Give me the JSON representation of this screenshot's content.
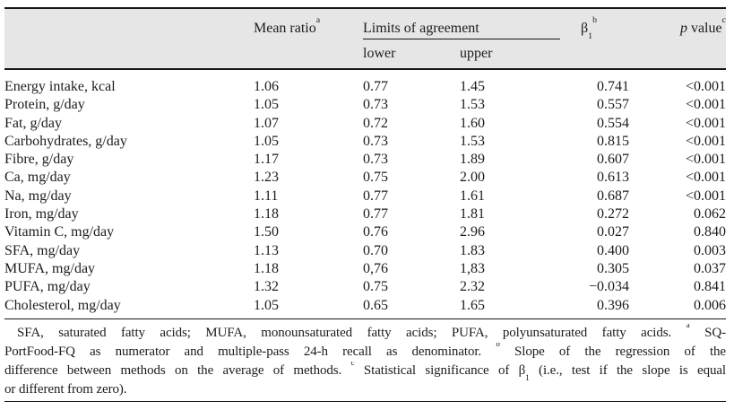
{
  "colors": {
    "header_background": "#e6e6e6",
    "text": "#1c1c1c",
    "rule": "#161616"
  },
  "table": {
    "header": {
      "mean_ratio": {
        "parts": [
          {
            "t": "Mean ratio"
          },
          {
            "sup": "a"
          }
        ]
      },
      "limits": {
        "label": "Limits of agreement",
        "sub_columns": [
          "lower",
          "upper"
        ]
      },
      "beta1": {
        "parts": [
          {
            "t": "β"
          },
          {
            "sub": "1"
          },
          {
            "sup": "b"
          }
        ]
      },
      "p_value": {
        "parts": [
          {
            "i": "p"
          },
          {
            "t": " value"
          },
          {
            "sup": "c"
          }
        ]
      }
    },
    "rows": [
      {
        "label": "Energy intake, kcal",
        "mean_ratio": "1.06",
        "lower": "0.77",
        "upper": "1.45",
        "beta": "0.741",
        "p_value": "<0.001"
      },
      {
        "label": "Protein, g/day",
        "mean_ratio": "1.05",
        "lower": "0.73",
        "upper": "1.53",
        "beta": "0.557",
        "p_value": "<0.001"
      },
      {
        "label": "Fat, g/day",
        "mean_ratio": "1.07",
        "lower": "0.72",
        "upper": "1.60",
        "beta": "0.554",
        "p_value": "<0.001"
      },
      {
        "label": "Carbohydrates, g/day",
        "mean_ratio": "1.05",
        "lower": "0.73",
        "upper": "1.53",
        "beta": "0.815",
        "p_value": "<0.001"
      },
      {
        "label": "Fibre, g/day",
        "mean_ratio": "1.17",
        "lower": "0.73",
        "upper": "1.89",
        "beta": "0.607",
        "p_value": "<0.001"
      },
      {
        "label": "Ca, mg/day",
        "mean_ratio": "1.23",
        "lower": "0.75",
        "upper": "2.00",
        "beta": "0.613",
        "p_value": "<0.001"
      },
      {
        "label": "Na, mg/day",
        "mean_ratio": "1.11",
        "lower": "0.77",
        "upper": "1.61",
        "beta": "0.687",
        "p_value": "<0.001"
      },
      {
        "label": "Iron, mg/day",
        "mean_ratio": "1.18",
        "lower": "0.77",
        "upper": "1.81",
        "beta": "0.272",
        "p_value": "0.062"
      },
      {
        "label": "Vitamin C, mg/day",
        "mean_ratio": "1.50",
        "lower": "0.76",
        "upper": "2.96",
        "beta": "0.027",
        "p_value": "0.840"
      },
      {
        "label": "SFA, mg/day",
        "mean_ratio": "1.13",
        "lower": "0.70",
        "upper": "1.83",
        "beta": "0.400",
        "p_value": "0.003"
      },
      {
        "label": "MUFA, mg/day",
        "mean_ratio": "1.18",
        "lower": "0,76",
        "upper": "1,83",
        "beta": "0.305",
        "p_value": "0.037"
      },
      {
        "label": "PUFA, mg/day",
        "mean_ratio": "1.32",
        "lower": "0.75",
        "upper": "2.32",
        "beta": "−0.034",
        "p_value": "0.841"
      },
      {
        "label": "Cholesterol, mg/day",
        "mean_ratio": "1.05",
        "lower": "0.65",
        "upper": "1.65",
        "beta": "0.396",
        "p_value": "0.006"
      }
    ]
  },
  "footnote": {
    "lines": [
      [
        {
          "t": "SFA, saturated fatty acids; MUFA, monounsaturated fatty acids; PUFA, polyunsaturated fatty acids. "
        },
        {
          "sup": "a"
        },
        {
          "t": " SQ-"
        }
      ],
      [
        {
          "t": "PortFood-FQ as numerator and multiple-pass 24-h recall as denominator. "
        },
        {
          "sup": "b"
        },
        {
          "t": " Slope of the regression of the"
        }
      ],
      [
        {
          "t": "difference between methods on the average of methods. "
        },
        {
          "sup": "c"
        },
        {
          "t": " Statistical significance of β"
        },
        {
          "sub": "1"
        },
        {
          "t": " (i.e., test if the slope is equal"
        }
      ],
      [
        {
          "t": "or different from zero)."
        }
      ]
    ]
  }
}
